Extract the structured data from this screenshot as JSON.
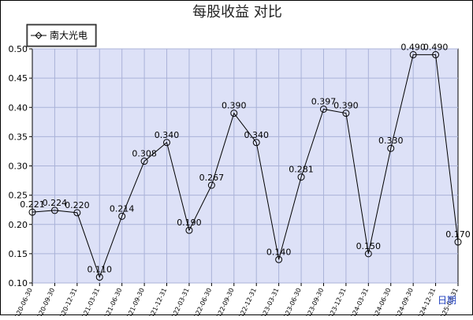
{
  "chart_data": {
    "type": "line",
    "title": "每股收益  对比",
    "xlabel": "",
    "ylabel": "",
    "x_unit_label": "日期",
    "ylim": [
      0.1,
      0.5
    ],
    "yticks": [
      "0.10",
      "0.15",
      "0.20",
      "0.25",
      "0.30",
      "0.35",
      "0.40",
      "0.45",
      "0.50"
    ],
    "grid": true,
    "legend": "top-left",
    "categories": [
      "2020-06-30",
      "2020-09-30",
      "2020-12-31",
      "2021-03-31",
      "2021-06-30",
      "2021-09-30",
      "2021-12-31",
      "2022-03-31",
      "2022-06-30",
      "2022-09-30",
      "2022-12-31",
      "2023-03-31",
      "2023-06-30",
      "2023-09-30",
      "2023-12-31",
      "2024-03-31",
      "2024-06-30",
      "2024-09-30",
      "2024-12-31",
      "2025-03-31"
    ],
    "series": [
      {
        "name": "南大光电",
        "values": [
          0.221,
          0.224,
          0.22,
          0.11,
          0.214,
          0.308,
          0.34,
          0.19,
          0.267,
          0.39,
          0.34,
          0.14,
          0.281,
          0.397,
          0.39,
          0.15,
          0.33,
          0.49,
          0.49,
          0.17
        ],
        "labels": [
          "0.221",
          "0.224",
          "0.220",
          "0.110",
          "0.214",
          "0.308",
          "0.340",
          "0.190",
          "0.267",
          "0.390",
          "0.340",
          "0.140",
          "0.281",
          "0.397",
          "0.390",
          "0.150",
          "0.330",
          "0.490",
          "0.490",
          "0.170"
        ]
      }
    ],
    "colors": {
      "plot_bg": "#dde1f7",
      "grid": "#aab2d8",
      "line": "#000000"
    }
  }
}
